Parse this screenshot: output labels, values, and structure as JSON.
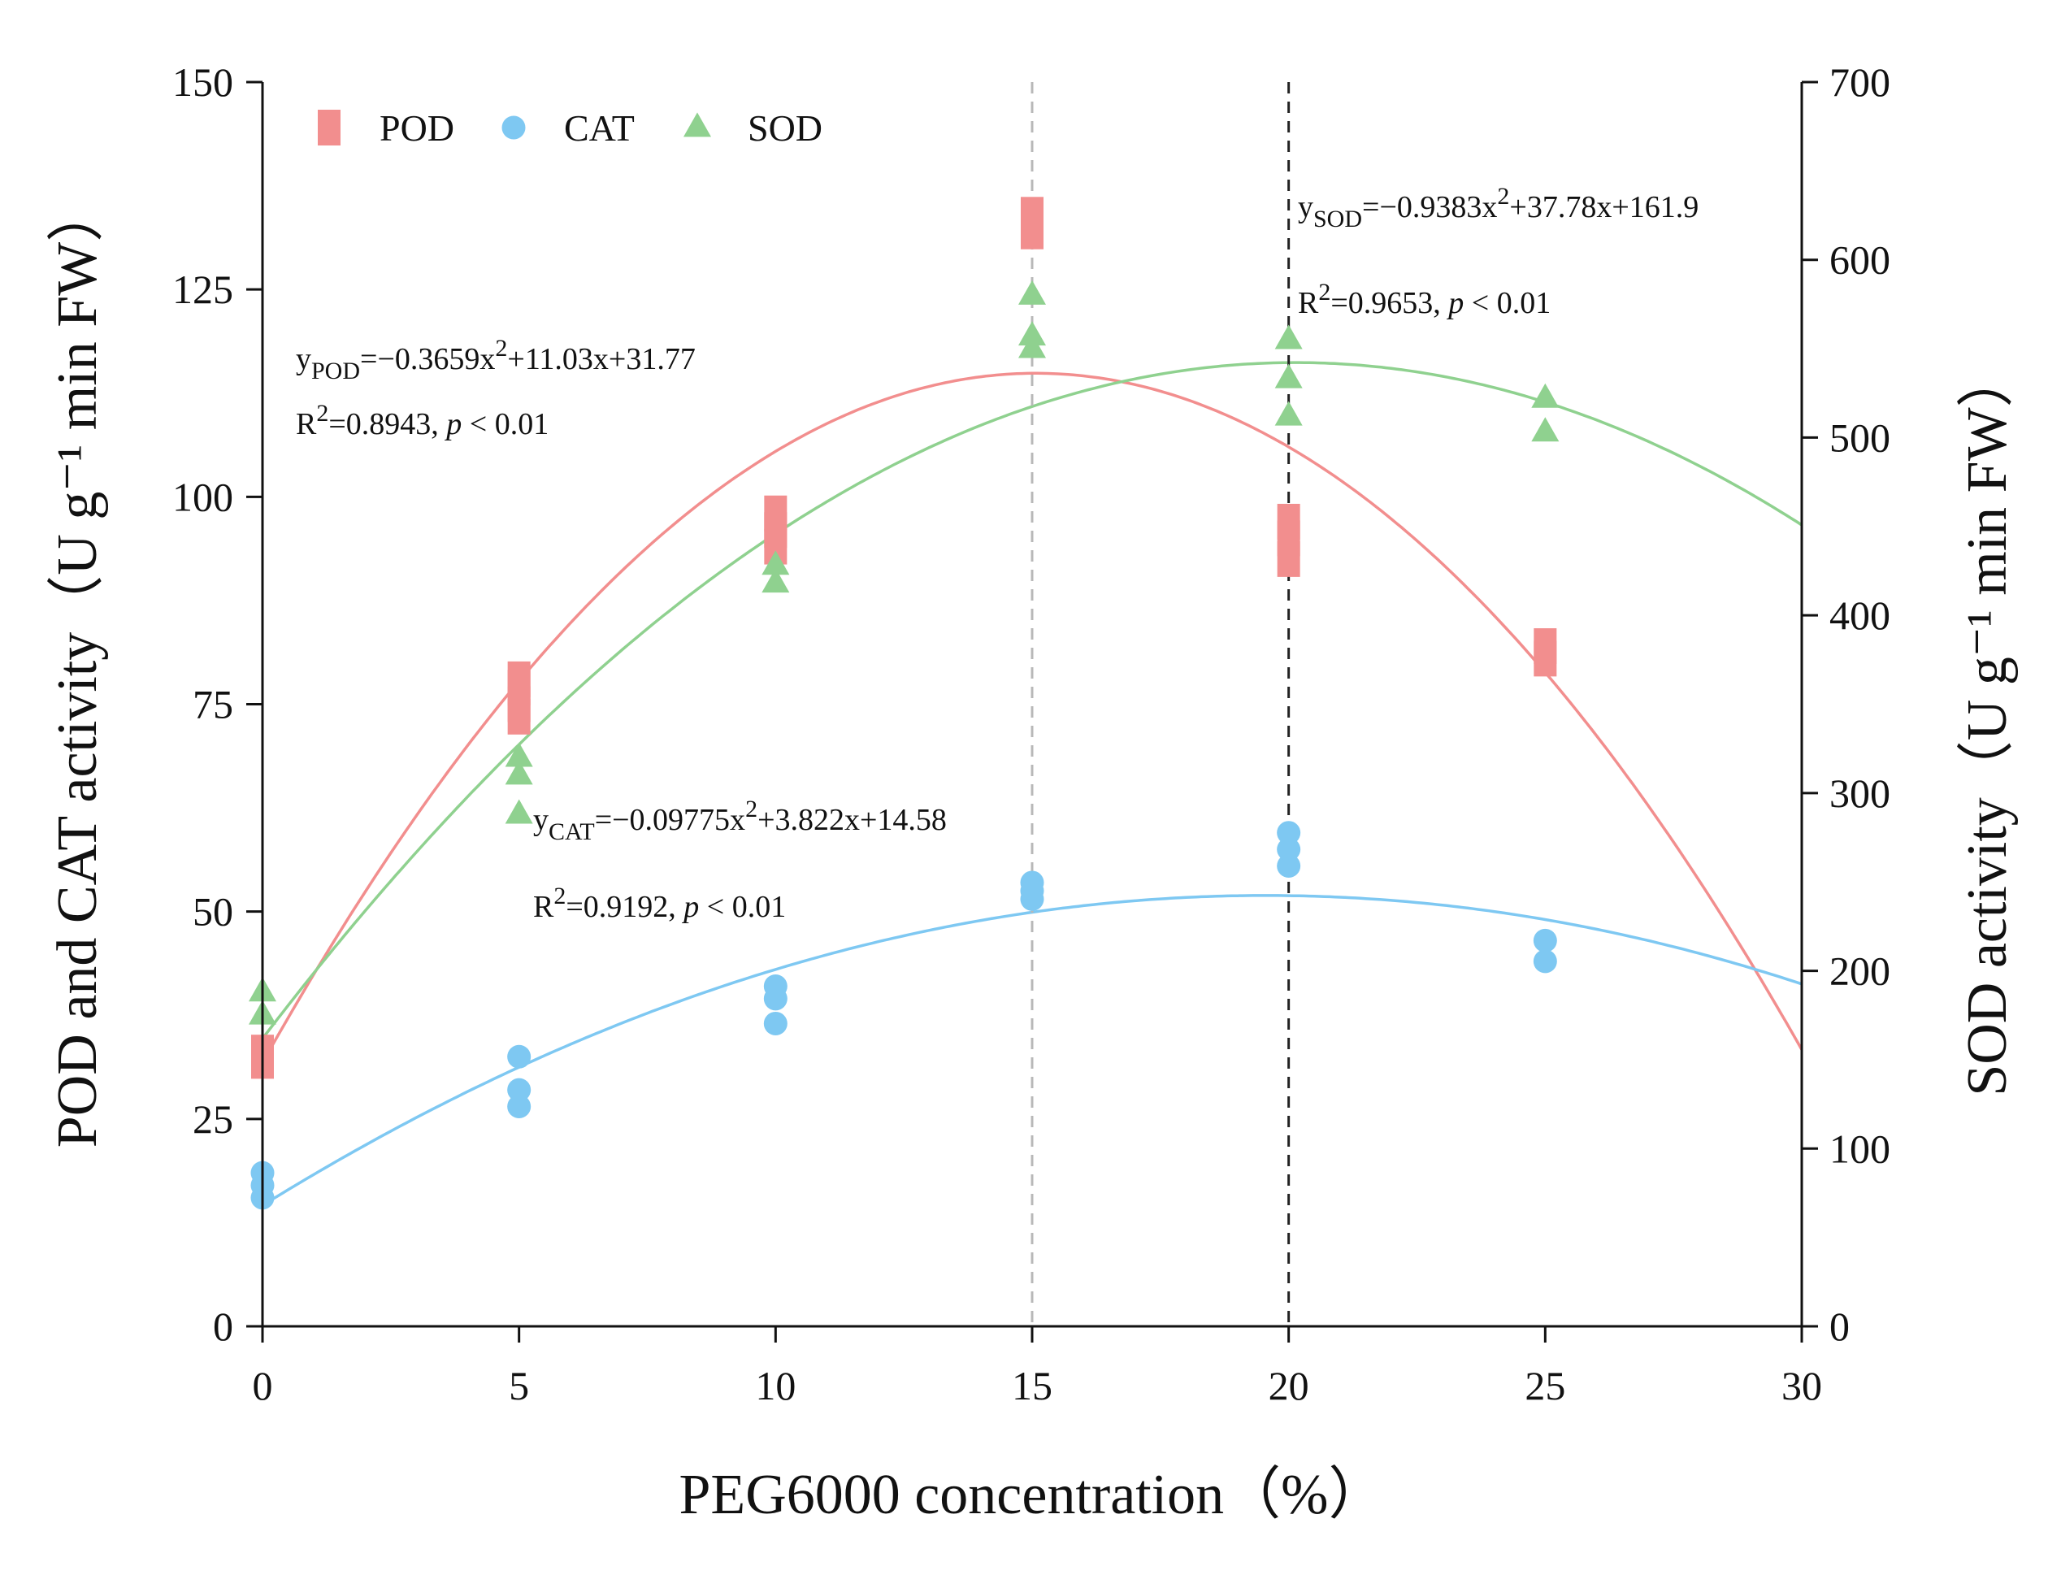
{
  "chart_data": {
    "type": "scatter",
    "xlabel": "PEG6000 concentration（%）",
    "ylabel_left": "POD and CAT activity（U g⁻¹ min FW）",
    "ylabel_right": "SOD activity（U g⁻¹ min FW）",
    "xlim": [
      0,
      30
    ],
    "ylim_left": [
      0,
      150
    ],
    "ylim_right": [
      0,
      700
    ],
    "xticks": [
      0,
      5,
      10,
      15,
      20,
      25,
      30
    ],
    "yticks_left": [
      0,
      25,
      50,
      75,
      100,
      125,
      150
    ],
    "yticks_right": [
      0,
      100,
      200,
      300,
      400,
      500,
      600,
      700
    ],
    "grid": false,
    "legend_placement": "top-left",
    "reference_lines": [
      {
        "x": 15,
        "color": "#b8b8b8",
        "style": "dashed"
      },
      {
        "x": 20,
        "color": "#222222",
        "style": "dashed"
      }
    ],
    "series": [
      {
        "name": "POD",
        "axis": "left",
        "marker": "square",
        "color": "#f28e8e",
        "points": [
          [
            0,
            32
          ],
          [
            0,
            33
          ],
          [
            5,
            73.5
          ],
          [
            5,
            75
          ],
          [
            5,
            77
          ],
          [
            5,
            78
          ],
          [
            10,
            94
          ],
          [
            10,
            96
          ],
          [
            10,
            98
          ],
          [
            15,
            132
          ],
          [
            15,
            134
          ],
          [
            20,
            92.5
          ],
          [
            20,
            95
          ],
          [
            20,
            97
          ],
          [
            25,
            80.5
          ],
          [
            25,
            82
          ]
        ],
        "fit": {
          "a": -0.3659,
          "b": 11.03,
          "c": 31.77
        },
        "equation": {
          "y": "y",
          "sub": "POD",
          "text1": "=−0.3659x",
          "sup": "2",
          "text2": "+11.03x+31.77"
        },
        "r2": {
          "label": "R",
          "sup": "2",
          "value": "=0.8943, ",
          "p": "p",
          "tail": " < 0.01"
        }
      },
      {
        "name": "CAT",
        "axis": "left",
        "marker": "circle",
        "color": "#7ec8f2",
        "points": [
          [
            0,
            15.5
          ],
          [
            0,
            17
          ],
          [
            0,
            18.5
          ],
          [
            5,
            26.5
          ],
          [
            5,
            28.5
          ],
          [
            5,
            32.5
          ],
          [
            10,
            36.5
          ],
          [
            10,
            39.5
          ],
          [
            10,
            41
          ],
          [
            15,
            51.5
          ],
          [
            15,
            52.5
          ],
          [
            15,
            53.5
          ],
          [
            20,
            55.5
          ],
          [
            20,
            57.5
          ],
          [
            20,
            59.5
          ],
          [
            25,
            44
          ],
          [
            25,
            46.5
          ]
        ],
        "fit": {
          "a": -0.09775,
          "b": 3.822,
          "c": 14.58
        },
        "equation": {
          "y": "y",
          "sub": "CAT",
          "text1": "=−0.09775x",
          "sup": "2",
          "text2": "+3.822x+14.58"
        },
        "r2": {
          "label": "R",
          "sup": "2",
          "value": "=0.9192, ",
          "p": "p",
          "tail": " < 0.01"
        }
      },
      {
        "name": "SOD",
        "axis": "right",
        "marker": "triangle",
        "color": "#8fd18f",
        "points": [
          [
            0,
            175
          ],
          [
            0,
            188
          ],
          [
            5,
            288
          ],
          [
            5,
            310
          ],
          [
            5,
            320
          ],
          [
            10,
            418
          ],
          [
            10,
            428
          ],
          [
            15,
            550
          ],
          [
            15,
            557
          ],
          [
            15,
            580
          ],
          [
            20,
            512
          ],
          [
            20,
            533
          ],
          [
            20,
            555
          ],
          [
            25,
            503
          ],
          [
            25,
            522
          ]
        ],
        "fit": {
          "a": -0.9383,
          "b": 37.78,
          "c": 161.9
        },
        "equation": {
          "y": "y",
          "sub": "SOD",
          "text1": "=−0.9383x",
          "sup": "2",
          "text2": "+37.78x+161.9"
        },
        "r2": {
          "label": "R",
          "sup": "2",
          "value": "=0.9653, ",
          "p": "p",
          "tail": " < 0.01"
        }
      }
    ]
  }
}
